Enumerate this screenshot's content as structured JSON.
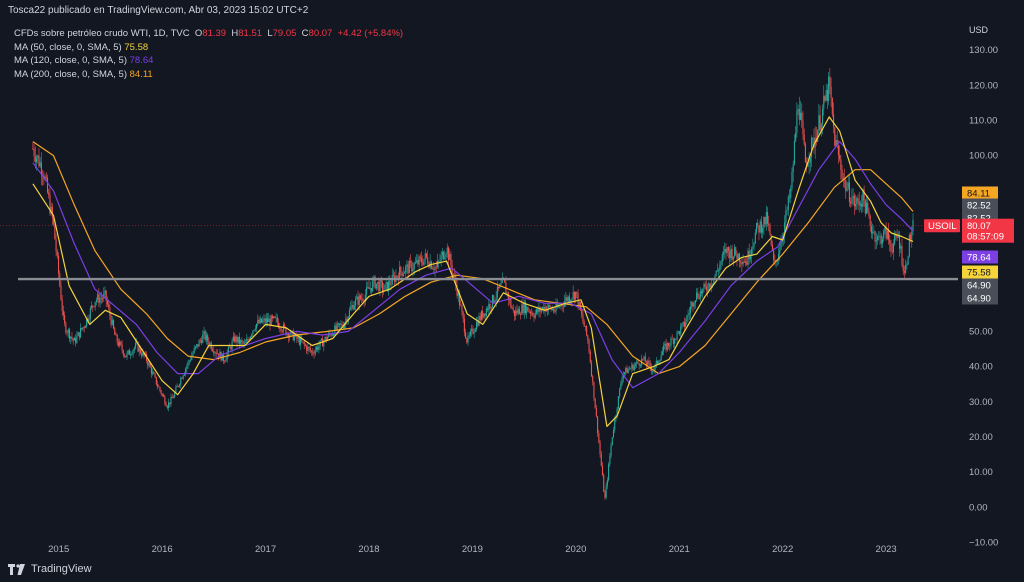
{
  "header": {
    "author": "Tosca22 publicado en TradingView.com, Abr 03, 2023 15:02 UTC+2"
  },
  "legend": {
    "instrument": "CFDs sobre petróleo crudo WTI, 1D, TVC",
    "o_label": "O",
    "o_value": "81.39",
    "h_label": "H",
    "h_value": "81.51",
    "l_label": "L",
    "l_value": "79.05",
    "c_label": "C",
    "c_value": "80.07",
    "change": "+4.42 (+5.84%)",
    "ma50_label": "MA (50, close, 0, SMA, 5)",
    "ma50_value": "75.58",
    "ma120_label": "MA (120, close, 0, SMA, 5)",
    "ma120_value": "78.64",
    "ma200_label": "MA (200, close, 0, SMA, 5)",
    "ma200_value": "84.11"
  },
  "footer": {
    "brand": "TradingView",
    "logo_icon": "tradingview-logo-icon"
  },
  "colors": {
    "background": "#131722",
    "up": "#26a69a",
    "down": "#ef5350",
    "ma50": "#f5d33b",
    "ma120": "#7b3fe4",
    "ma200": "#f5a623",
    "price_tag": "#f23645",
    "grey_tag": "#4a4e59",
    "hline": "#8a8d94"
  },
  "chart_data": {
    "type": "candlestick",
    "symbol": "USOIL",
    "currency": "USD",
    "ylim": [
      -15,
      138
    ],
    "y_ticks": [
      "130.00",
      "120.00",
      "110.00",
      "100.00",
      "50.00",
      "40.00",
      "30.00",
      "20.00",
      "10.00",
      "0.00",
      "−10.00"
    ],
    "x_ticks": [
      "2015",
      "2016",
      "2017",
      "2018",
      "2019",
      "2020",
      "2021",
      "2022",
      "2023"
    ],
    "horizontal_line": 64.9,
    "last_price": 80.07,
    "countdown": "08:57:09",
    "price_labels": [
      {
        "text": "84.11",
        "kind": "ma200"
      },
      {
        "text": "82.52",
        "kind": "grey"
      },
      {
        "text": "82.52",
        "kind": "grey"
      },
      {
        "text": "78.64",
        "kind": "ma120"
      },
      {
        "text": "75.58",
        "kind": "ma50"
      },
      {
        "text": "64.90",
        "kind": "grey"
      },
      {
        "text": "64.90",
        "kind": "grey"
      }
    ],
    "price_path": [
      [
        2014.75,
        102
      ],
      [
        2014.85,
        96
      ],
      [
        2014.95,
        80
      ],
      [
        2015.05,
        52
      ],
      [
        2015.15,
        47
      ],
      [
        2015.25,
        52
      ],
      [
        2015.35,
        59
      ],
      [
        2015.45,
        60
      ],
      [
        2015.55,
        48
      ],
      [
        2015.65,
        43
      ],
      [
        2015.75,
        46
      ],
      [
        2015.85,
        42
      ],
      [
        2015.95,
        35
      ],
      [
        2016.05,
        29
      ],
      [
        2016.1,
        31
      ],
      [
        2016.2,
        38
      ],
      [
        2016.3,
        44
      ],
      [
        2016.4,
        49
      ],
      [
        2016.5,
        45
      ],
      [
        2016.6,
        42
      ],
      [
        2016.7,
        48
      ],
      [
        2016.8,
        46
      ],
      [
        2016.9,
        52
      ],
      [
        2017.0,
        53
      ],
      [
        2017.1,
        53
      ],
      [
        2017.2,
        50
      ],
      [
        2017.3,
        48
      ],
      [
        2017.45,
        44
      ],
      [
        2017.55,
        47
      ],
      [
        2017.65,
        50
      ],
      [
        2017.75,
        52
      ],
      [
        2017.85,
        58
      ],
      [
        2017.95,
        60
      ],
      [
        2018.05,
        64
      ],
      [
        2018.15,
        62
      ],
      [
        2018.3,
        67
      ],
      [
        2018.45,
        69
      ],
      [
        2018.55,
        71
      ],
      [
        2018.65,
        68
      ],
      [
        2018.75,
        74
      ],
      [
        2018.85,
        62
      ],
      [
        2018.95,
        47
      ],
      [
        2019.05,
        53
      ],
      [
        2019.2,
        59
      ],
      [
        2019.3,
        64
      ],
      [
        2019.4,
        55
      ],
      [
        2019.5,
        57
      ],
      [
        2019.6,
        55
      ],
      [
        2019.7,
        57
      ],
      [
        2019.8,
        56
      ],
      [
        2019.9,
        59
      ],
      [
        2020.0,
        61
      ],
      [
        2020.05,
        55
      ],
      [
        2020.12,
        47
      ],
      [
        2020.2,
        25
      ],
      [
        2020.28,
        2
      ],
      [
        2020.35,
        20
      ],
      [
        2020.45,
        38
      ],
      [
        2020.55,
        40
      ],
      [
        2020.65,
        42
      ],
      [
        2020.75,
        39
      ],
      [
        2020.85,
        45
      ],
      [
        2020.95,
        48
      ],
      [
        2021.05,
        52
      ],
      [
        2021.15,
        60
      ],
      [
        2021.25,
        62
      ],
      [
        2021.35,
        66
      ],
      [
        2021.45,
        73
      ],
      [
        2021.55,
        72
      ],
      [
        2021.65,
        70
      ],
      [
        2021.75,
        79
      ],
      [
        2021.85,
        82
      ],
      [
        2021.92,
        68
      ],
      [
        2022.0,
        78
      ],
      [
        2022.08,
        90
      ],
      [
        2022.15,
        116
      ],
      [
        2022.22,
        98
      ],
      [
        2022.3,
        104
      ],
      [
        2022.38,
        112
      ],
      [
        2022.45,
        120
      ],
      [
        2022.5,
        105
      ],
      [
        2022.6,
        92
      ],
      [
        2022.7,
        86
      ],
      [
        2022.78,
        88
      ],
      [
        2022.85,
        80
      ],
      [
        2022.92,
        76
      ],
      [
        2023.0,
        78
      ],
      [
        2023.05,
        74
      ],
      [
        2023.12,
        77
      ],
      [
        2023.18,
        66
      ],
      [
        2023.22,
        75
      ],
      [
        2023.26,
        80
      ]
    ],
    "ma50_path": [
      [
        2014.75,
        92
      ],
      [
        2014.95,
        83
      ],
      [
        2015.1,
        63
      ],
      [
        2015.3,
        52
      ],
      [
        2015.45,
        56
      ],
      [
        2015.6,
        54
      ],
      [
        2015.8,
        45
      ],
      [
        2016.0,
        36
      ],
      [
        2016.15,
        32
      ],
      [
        2016.3,
        38
      ],
      [
        2016.45,
        46
      ],
      [
        2016.6,
        46
      ],
      [
        2016.8,
        46
      ],
      [
        2017.0,
        52
      ],
      [
        2017.2,
        51
      ],
      [
        2017.45,
        46
      ],
      [
        2017.65,
        48
      ],
      [
        2017.85,
        55
      ],
      [
        2018.0,
        60
      ],
      [
        2018.2,
        62
      ],
      [
        2018.45,
        67
      ],
      [
        2018.6,
        69
      ],
      [
        2018.75,
        70
      ],
      [
        2018.95,
        55
      ],
      [
        2019.1,
        52
      ],
      [
        2019.3,
        61
      ],
      [
        2019.5,
        58
      ],
      [
        2019.7,
        56
      ],
      [
        2019.9,
        58
      ],
      [
        2020.05,
        59
      ],
      [
        2020.15,
        51
      ],
      [
        2020.3,
        23
      ],
      [
        2020.4,
        26
      ],
      [
        2020.55,
        38
      ],
      [
        2020.75,
        40
      ],
      [
        2020.9,
        42
      ],
      [
        2021.05,
        50
      ],
      [
        2021.25,
        60
      ],
      [
        2021.45,
        68
      ],
      [
        2021.6,
        71
      ],
      [
        2021.75,
        72
      ],
      [
        2021.9,
        77
      ],
      [
        2022.0,
        76
      ],
      [
        2022.15,
        90
      ],
      [
        2022.3,
        103
      ],
      [
        2022.45,
        111
      ],
      [
        2022.55,
        107
      ],
      [
        2022.7,
        93
      ],
      [
        2022.85,
        87
      ],
      [
        2022.95,
        81
      ],
      [
        2023.05,
        78
      ],
      [
        2023.15,
        77
      ],
      [
        2023.26,
        75.6
      ]
    ],
    "ma120_path": [
      [
        2014.75,
        98
      ],
      [
        2014.95,
        90
      ],
      [
        2015.15,
        75
      ],
      [
        2015.35,
        62
      ],
      [
        2015.55,
        57
      ],
      [
        2015.75,
        52
      ],
      [
        2015.95,
        44
      ],
      [
        2016.15,
        38
      ],
      [
        2016.35,
        38
      ],
      [
        2016.55,
        43
      ],
      [
        2016.8,
        46
      ],
      [
        2017.0,
        48
      ],
      [
        2017.3,
        50
      ],
      [
        2017.55,
        49
      ],
      [
        2017.8,
        50
      ],
      [
        2018.05,
        56
      ],
      [
        2018.3,
        62
      ],
      [
        2018.55,
        66
      ],
      [
        2018.8,
        68
      ],
      [
        2019.0,
        63
      ],
      [
        2019.2,
        58
      ],
      [
        2019.45,
        60
      ],
      [
        2019.7,
        58
      ],
      [
        2019.95,
        58
      ],
      [
        2020.15,
        55
      ],
      [
        2020.35,
        42
      ],
      [
        2020.55,
        34
      ],
      [
        2020.8,
        38
      ],
      [
        2021.0,
        44
      ],
      [
        2021.25,
        53
      ],
      [
        2021.5,
        63
      ],
      [
        2021.75,
        70
      ],
      [
        2021.95,
        74
      ],
      [
        2022.15,
        85
      ],
      [
        2022.35,
        96
      ],
      [
        2022.55,
        104
      ],
      [
        2022.7,
        99
      ],
      [
        2022.85,
        92
      ],
      [
        2023.0,
        86
      ],
      [
        2023.15,
        82
      ],
      [
        2023.26,
        78.6
      ]
    ],
    "ma200_path": [
      [
        2014.75,
        104
      ],
      [
        2014.95,
        100
      ],
      [
        2015.15,
        86
      ],
      [
        2015.35,
        73
      ],
      [
        2015.6,
        62
      ],
      [
        2015.85,
        55
      ],
      [
        2016.05,
        48
      ],
      [
        2016.25,
        43
      ],
      [
        2016.5,
        42
      ],
      [
        2016.75,
        44
      ],
      [
        2017.0,
        47
      ],
      [
        2017.3,
        49
      ],
      [
        2017.6,
        50
      ],
      [
        2017.85,
        51
      ],
      [
        2018.1,
        55
      ],
      [
        2018.35,
        60
      ],
      [
        2018.6,
        64
      ],
      [
        2018.85,
        66
      ],
      [
        2019.1,
        65
      ],
      [
        2019.35,
        62
      ],
      [
        2019.6,
        59
      ],
      [
        2019.85,
        58
      ],
      [
        2020.1,
        57
      ],
      [
        2020.3,
        52
      ],
      [
        2020.55,
        43
      ],
      [
        2020.8,
        38
      ],
      [
        2021.0,
        40
      ],
      [
        2021.25,
        46
      ],
      [
        2021.5,
        55
      ],
      [
        2021.75,
        64
      ],
      [
        2022.0,
        72
      ],
      [
        2022.25,
        81
      ],
      [
        2022.5,
        91
      ],
      [
        2022.7,
        96
      ],
      [
        2022.85,
        96
      ],
      [
        2023.0,
        92
      ],
      [
        2023.15,
        88
      ],
      [
        2023.26,
        84.1
      ]
    ]
  }
}
